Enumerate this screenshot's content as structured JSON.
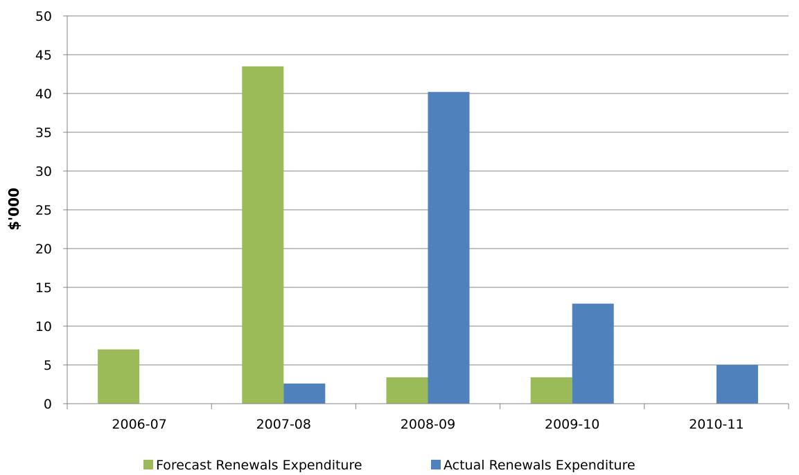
{
  "chart_data": {
    "type": "bar",
    "title": "",
    "xlabel": "",
    "ylabel": "$'000",
    "ylim": [
      0,
      50
    ],
    "ytick_step": 5,
    "yticks": [
      "0",
      "5",
      "10",
      "15",
      "20",
      "25",
      "30",
      "35",
      "40",
      "45",
      "50"
    ],
    "grid": true,
    "legend_position": "bottom",
    "categories": [
      "2006-07",
      "2007-08",
      "2008-09",
      "2009-10",
      "2010-11"
    ],
    "series": [
      {
        "name": "Forecast Renewals Expenditure",
        "color": "#9BBB59",
        "values": [
          7.0,
          43.5,
          3.4,
          3.4,
          0
        ]
      },
      {
        "name": "Actual Renewals Expenditure",
        "color": "#4F81BD",
        "values": [
          0,
          2.6,
          40.2,
          12.9,
          5.0
        ]
      }
    ]
  }
}
